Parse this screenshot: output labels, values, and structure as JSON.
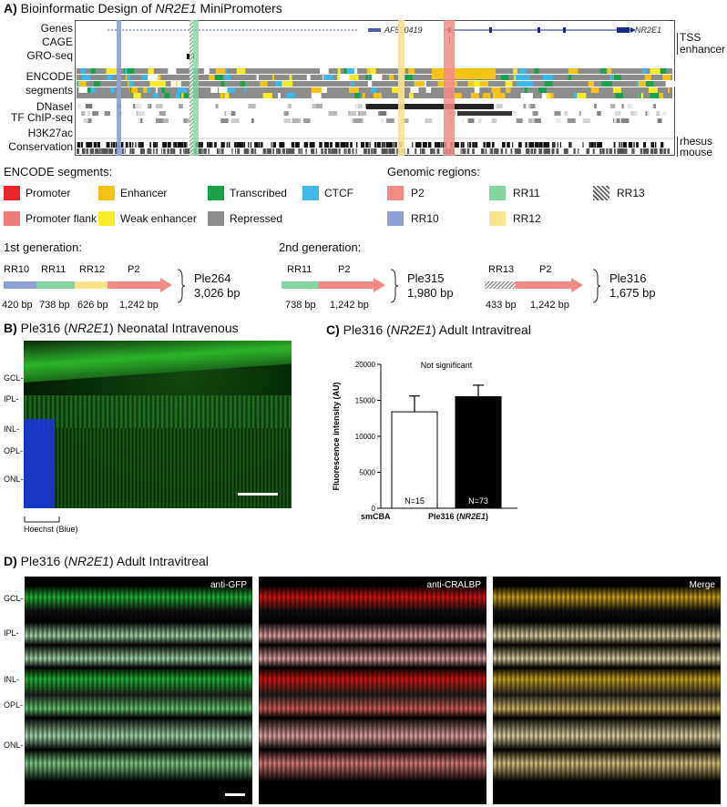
{
  "panelA": {
    "letter": "A)",
    "title_pre": "Bioinformatic Design of ",
    "title_gene": "NR2E1",
    "title_post": " MiniPromoters",
    "tracks": {
      "genes": "Genes",
      "cage": "CAGE",
      "groseq": "GRO-seq",
      "encode": "ENCODE",
      "segments": "segments",
      "dnasel": "DNaseI",
      "tfchip": "TF ChIP-seq",
      "h3k27ac": "H3K27ac",
      "conservation": "Conservation"
    },
    "genes_labels": {
      "af": "AF520419",
      "nr2e1": "NR2E1"
    },
    "right_labels": {
      "tss": "TSS",
      "enhancer": "enhancer",
      "rhesus": "rhesus",
      "mouse": "mouse"
    },
    "encode_segments_title": "ENCODE segments:",
    "encode_legend": [
      {
        "label": "Promoter",
        "color": "#e8262a"
      },
      {
        "label": "Enhancer",
        "color": "#f5c218"
      },
      {
        "label": "Transcribed",
        "color": "#1aa24b"
      },
      {
        "label": "CTCF",
        "color": "#3fb8e9"
      },
      {
        "label": "Promoter flank",
        "color": "#f07a76"
      },
      {
        "label": "Weak enhancer",
        "color": "#f6ec28"
      },
      {
        "label": "Repressed",
        "color": "#8c8c8c"
      }
    ],
    "genomic_regions_title": "Genomic regions:",
    "region_legend": [
      {
        "label": "P2",
        "color": "#f28b88"
      },
      {
        "label": "RR11",
        "color": "#86d3a4"
      },
      {
        "label": "RR13",
        "color": "hatch"
      },
      {
        "label": "RR10",
        "color": "#8ea0d3"
      },
      {
        "label": "RR12",
        "color": "#f8e48c"
      }
    ],
    "first_gen": "1st generation:",
    "second_gen": "2nd generation:",
    "constructs": {
      "ple264": {
        "name": "Ple264",
        "size": "3,026 bp",
        "parts": [
          {
            "label": "RR10",
            "bp": "420 bp"
          },
          {
            "label": "RR11",
            "bp": "738 bp"
          },
          {
            "label": "RR12",
            "bp": "626 bp"
          },
          {
            "label": "P2",
            "bp": "1,242 bp"
          }
        ]
      },
      "ple315": {
        "name": "Ple315",
        "size": "1,980 bp",
        "parts": [
          {
            "label": "RR11",
            "bp": "738 bp"
          },
          {
            "label": "P2",
            "bp": "1,242 bp"
          }
        ]
      },
      "ple316": {
        "name": "Ple316",
        "size": "1,675 bp",
        "parts": [
          {
            "label": "RR13",
            "bp": "433 bp"
          },
          {
            "label": "P2",
            "bp": "1,242 bp"
          }
        ]
      }
    }
  },
  "panelB": {
    "letter": "B)",
    "title_pre": "Ple316 (",
    "title_gene": "NR2E1",
    "title_post": ") Neonatal Intravenous",
    "layers": [
      "GCL-",
      "IPL-",
      "INL-",
      "OPL-",
      "ONL-"
    ],
    "hoechst": "Hoechst (Blue)"
  },
  "panelC": {
    "letter": "C)",
    "title_pre": "Ple316 (",
    "title_gene": "NR2E1",
    "title_post": ") Adult Intravitreal",
    "annotation": "Not significant",
    "bar_labels": [
      "smCBA",
      "Ple316 (",
      "NR2E1",
      ")"
    ]
  },
  "chart_data": {
    "type": "bar",
    "categories": [
      "smCBA",
      "Ple316 (NR2E1)"
    ],
    "series": [
      {
        "values": [
          13400,
          15500
        ],
        "errors": [
          2200,
          1600
        ],
        "n_labels": [
          "N=15",
          "N=73"
        ],
        "colors": [
          "#ffffff",
          "#000000"
        ]
      }
    ],
    "ylabel": "Fluorescence intensity (AU)",
    "ylim": [
      0,
      20000
    ],
    "yticks": [
      "0",
      "5000",
      "10000",
      "15000",
      "20000"
    ],
    "annotation": "Not significant"
  },
  "panelD": {
    "letter": "D)",
    "title_pre": "Ple316 (",
    "title_gene": "NR2E1",
    "title_post": ") Adult Intravitreal",
    "layers": [
      "GCL-",
      "IPL-",
      "INL-",
      "OPL-",
      "ONL-"
    ],
    "images": [
      {
        "label": "anti-GFP",
        "color": "#22c43a"
      },
      {
        "label": "anti-CRALBP",
        "color": "#e01818"
      },
      {
        "label": "Merge",
        "color": "#d9b020"
      }
    ]
  }
}
